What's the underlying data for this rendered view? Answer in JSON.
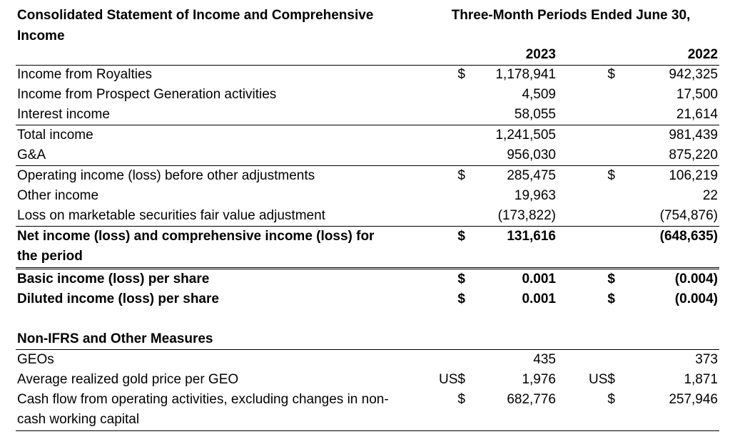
{
  "header": {
    "title": "Consolidated Statement of Income and Comprehensive Income",
    "period": "Three-Month Periods Ended June 30,",
    "year1": "2023",
    "year2": "2022"
  },
  "rows": [
    {
      "label": "Income from Royalties",
      "cur1": "$",
      "val1": "1,178,941",
      "cur2": "$",
      "val2": "942,325"
    },
    {
      "label": "Income from Prospect Generation activities",
      "cur1": "",
      "val1": "4,509",
      "cur2": "",
      "val2": "17,500"
    },
    {
      "label": "Interest income",
      "cur1": "",
      "val1": "58,055",
      "cur2": "",
      "val2": "21,614"
    },
    {
      "label": "Total income",
      "cur1": "",
      "val1": "1,241,505",
      "cur2": "",
      "val2": "981,439"
    },
    {
      "label": "G&A",
      "cur1": "",
      "val1": "956,030",
      "cur2": "",
      "val2": "875,220"
    },
    {
      "label": "Operating income (loss) before other adjustments",
      "cur1": "$",
      "val1": "285,475",
      "cur2": "$",
      "val2": "106,219"
    },
    {
      "label": "Other income",
      "cur1": "",
      "val1": "19,963",
      "cur2": "",
      "val2": "22"
    },
    {
      "label": "Loss on marketable securities fair value adjustment",
      "cur1": "",
      "val1": "(173,822)",
      "cur2": "",
      "val2": "(754,876)"
    },
    {
      "label": "Net income (loss) and comprehensive income (loss) for the period",
      "cur1": "$",
      "val1": "131,616",
      "cur2": "",
      "val2": "(648,635)"
    },
    {
      "label": "Basic income (loss) per share",
      "cur1": "$",
      "val1": "0.001",
      "cur2": "$",
      "val2": "(0.004)"
    },
    {
      "label": "Diluted income (loss) per share",
      "cur1": "$",
      "val1": "0.001",
      "cur2": "$",
      "val2": "(0.004)"
    }
  ],
  "non_ifrs": {
    "title": "Non-IFRS and Other Measures",
    "rows": [
      {
        "label": "GEOs",
        "cur1": "",
        "val1": "435",
        "cur2": "",
        "val2": "373"
      },
      {
        "label": "Average realized gold price per GEO",
        "cur1": "US$",
        "val1": "1,976",
        "cur2": "US$",
        "val2": "1,871"
      },
      {
        "label": "Cash flow from operating activities, excluding changes in non-cash working capital",
        "cur1": "$",
        "val1": "682,776",
        "cur2": "$",
        "val2": "257,946"
      }
    ]
  }
}
